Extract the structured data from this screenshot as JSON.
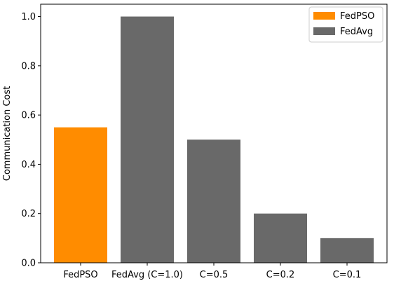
{
  "chart_data": {
    "type": "bar",
    "title": "",
    "xlabel": "",
    "ylabel": "Communication Cost",
    "ylim": [
      0,
      1.05
    ],
    "yticks": [
      "0.0",
      "0.2",
      "0.4",
      "0.6",
      "0.8",
      "1.0"
    ],
    "grid": false,
    "legend_position": "top-right",
    "categories": [
      "FedPSO",
      "FedAvg (C=1.0)",
      "C=0.5",
      "C=0.2",
      "C=0.1"
    ],
    "values": [
      0.55,
      1.0,
      0.5,
      0.2,
      0.1
    ],
    "bar_series": [
      "FedPSO",
      "FedAvg",
      "FedAvg",
      "FedAvg",
      "FedAvg"
    ],
    "series": [
      {
        "name": "FedPSO",
        "color": "#ff8c00"
      },
      {
        "name": "FedAvg",
        "color": "#696969"
      }
    ]
  }
}
